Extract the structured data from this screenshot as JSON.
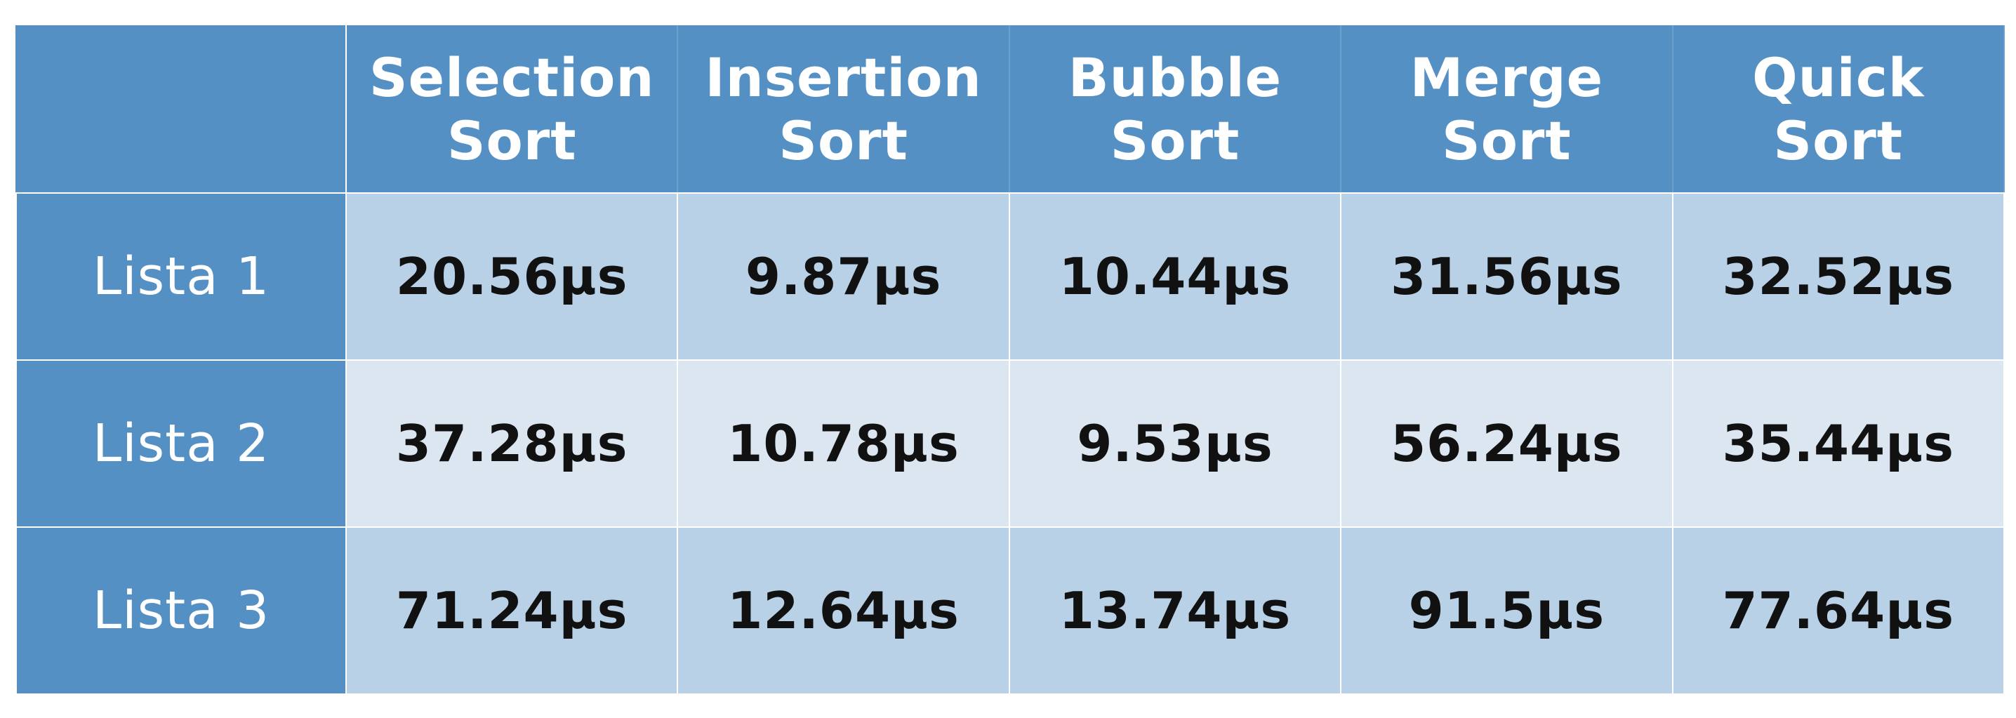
{
  "colors": {
    "header_bg": "#5590c4",
    "header_text": "#ffffff",
    "row_odd_bg": "#b9d1e6",
    "row_even_bg": "#dbe6f1",
    "value_text": "#111111"
  },
  "chart_data": {
    "type": "table",
    "columns": [
      {
        "line1": "Selection",
        "line2": "Sort"
      },
      {
        "line1": "Insertion",
        "line2": "Sort"
      },
      {
        "line1": "Bubble",
        "line2": "Sort"
      },
      {
        "line1": "Merge",
        "line2": "Sort"
      },
      {
        "line1": "Quick",
        "line2": "Sort"
      }
    ],
    "rows": [
      {
        "label": "Lista 1",
        "values": [
          "20.56µs",
          "9.87µs",
          "10.44µs",
          "31.56µs",
          "32.52µs"
        ]
      },
      {
        "label": "Lista 2",
        "values": [
          "37.28µs",
          "10.78µs",
          "9.53µs",
          "56.24µs",
          "35.44µs"
        ]
      },
      {
        "label": "Lista 3",
        "values": [
          "71.24µs",
          "12.64µs",
          "13.74µs",
          "91.5µs",
          "77.64µs"
        ]
      }
    ],
    "unit": "µs"
  }
}
